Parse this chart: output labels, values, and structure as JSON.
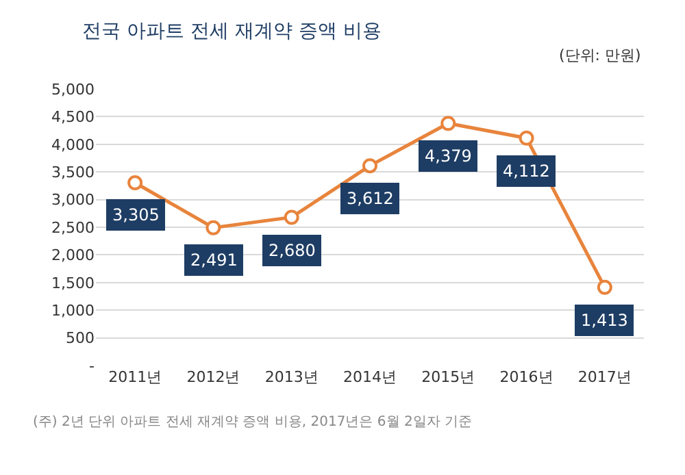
{
  "chart_data": {
    "type": "line",
    "title": "전국 아파트 전세 재계약 증액 비용",
    "categories": [
      "2011년",
      "2012년",
      "2013년",
      "2014년",
      "2015년",
      "2016년",
      "2017년"
    ],
    "series": [
      {
        "color": "#e8843c",
        "values": [
          3305,
          2491,
          2680,
          3612,
          4379,
          4112,
          1413
        ],
        "value_labels": [
          "3,305",
          "2,491",
          "2,680",
          "3,612",
          "4,379",
          "4,112",
          "1,413"
        ]
      }
    ],
    "ylim": [
      0,
      5000
    ],
    "yticks": [
      {
        "value": 0,
        "label": "-"
      },
      {
        "value": 500,
        "label": "500"
      },
      {
        "value": 1000,
        "label": "1,000"
      },
      {
        "value": 1500,
        "label": "1,500"
      },
      {
        "value": 2000,
        "label": "2,000"
      },
      {
        "value": 2500,
        "label": "2,500"
      },
      {
        "value": 3000,
        "label": "3,000"
      },
      {
        "value": 3500,
        "label": "3,500"
      },
      {
        "value": 4000,
        "label": "4,000"
      },
      {
        "value": 4500,
        "label": "4,500"
      },
      {
        "value": 5000,
        "label": "5,000"
      }
    ],
    "grid": "y",
    "marker": "circle",
    "line_style": "solid",
    "legend": false,
    "annotations": [
      "(단위: 만원)",
      "(주) 2년 단위 아파트 전세 재계약 증액 비용, 2017년은 6월 2일자 기준"
    ]
  }
}
